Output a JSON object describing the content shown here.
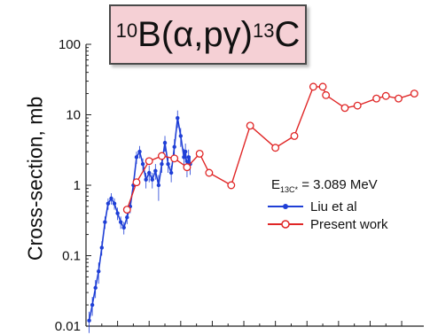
{
  "title": {
    "mass_a": "10",
    "reaction": "B(α,pγ)",
    "mass_b": "13",
    "product": "C"
  },
  "ylabel": "Cross-section, mb",
  "legend": {
    "energy_prefix": "E",
    "energy_subscript": "13C*",
    "energy_value": " = 3.089 MeV",
    "entries": [
      "Liu et al",
      "Present work"
    ]
  },
  "colors": {
    "liu": "#1f3fd6",
    "present": "#e02626",
    "title_bg": "#f5d0d5"
  },
  "chart_data": {
    "type": "line",
    "yscale": "log",
    "ylim": [
      0.01,
      100
    ],
    "xlim": [
      0,
      10.7
    ],
    "yticks": [
      "0.01",
      "0.1",
      "1",
      "10",
      "100"
    ],
    "x_tick_labels_shown": false,
    "series": [
      {
        "name": "Liu et al",
        "marker": "filled-circle",
        "x": [
          0.1,
          0.2,
          0.3,
          0.4,
          0.5,
          0.6,
          0.7,
          0.8,
          0.9,
          1.0,
          1.1,
          1.2,
          1.3,
          1.4,
          1.5,
          1.6,
          1.7,
          1.8,
          1.9,
          2.0,
          2.1,
          2.2,
          2.3,
          2.4,
          2.5,
          2.6,
          2.7,
          2.8,
          2.9,
          3.0,
          3.1,
          3.15,
          3.2,
          3.25,
          3.3
        ],
        "y": [
          0.012,
          0.02,
          0.035,
          0.06,
          0.13,
          0.3,
          0.55,
          0.65,
          0.55,
          0.4,
          0.3,
          0.25,
          0.35,
          0.5,
          1.0,
          2.5,
          3.0,
          2.0,
          1.2,
          1.5,
          1.2,
          1.6,
          1.0,
          2.0,
          4.0,
          2.0,
          1.5,
          3.5,
          9.0,
          5.0,
          2.5,
          3.0,
          1.8,
          2.5,
          2.0
        ],
        "err": [
          0.004,
          0.006,
          0.01,
          0.02,
          0.03,
          0.06,
          0.1,
          0.12,
          0.1,
          0.08,
          0.06,
          0.05,
          0.07,
          0.1,
          0.2,
          0.5,
          0.6,
          0.4,
          0.3,
          0.4,
          0.3,
          0.4,
          0.4,
          0.5,
          1.0,
          0.5,
          0.4,
          1.0,
          2.5,
          1.5,
          0.8,
          0.9,
          0.5,
          0.7,
          0.6
        ]
      },
      {
        "name": "Present work",
        "marker": "open-circle",
        "x": [
          1.3,
          1.6,
          2.0,
          2.4,
          2.8,
          3.2,
          3.6,
          3.9,
          4.6,
          5.2,
          6.0,
          6.6,
          7.2,
          7.5,
          7.6,
          8.2,
          8.6,
          9.2,
          9.5,
          9.9,
          10.4
        ],
        "y": [
          0.45,
          1.1,
          2.2,
          2.6,
          2.4,
          1.8,
          2.8,
          1.5,
          1.0,
          7.0,
          3.4,
          5.0,
          25.0,
          25.0,
          19.0,
          12.5,
          13.5,
          17.0,
          18.5,
          17.0,
          20.0
        ]
      }
    ]
  }
}
